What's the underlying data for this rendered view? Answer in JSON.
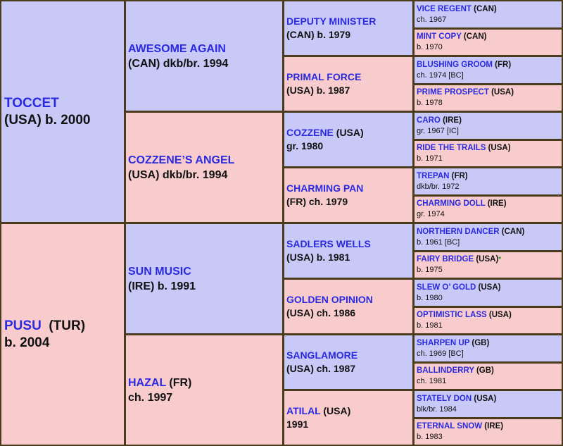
{
  "colors": {
    "male": "#c9c9f8",
    "female": "#f8cccc",
    "name": "#2a2ae0",
    "border": "#4a3b1c",
    "star": "#2a9a2a"
  },
  "gen1": [
    {
      "name": "TOCCET",
      "suffix": "",
      "line2": "(USA) b. 2000",
      "sex": "m"
    },
    {
      "name": "PUSU",
      "suffix": "  (TUR)",
      "line2": "b. 2004",
      "sex": "f"
    }
  ],
  "gen2": [
    {
      "name": "AWESOME AGAIN",
      "suffix": "",
      "line2": "(CAN) dkb/br. 1994",
      "sex": "m"
    },
    {
      "name": "COZZENE’S ANGEL",
      "suffix": "",
      "line2": "(USA) dkb/br. 1994",
      "sex": "f"
    },
    {
      "name": "SUN MUSIC",
      "suffix": "",
      "line2": "(IRE) b. 1991",
      "sex": "m"
    },
    {
      "name": "HAZAL",
      "suffix": " (FR)",
      "line2": "ch. 1997",
      "sex": "f"
    }
  ],
  "gen3": [
    {
      "name": "DEPUTY MINISTER",
      "suffix": "",
      "line2": "(CAN) b. 1979",
      "sex": "m"
    },
    {
      "name": "PRIMAL FORCE",
      "suffix": "",
      "line2": "(USA) b. 1987",
      "sex": "f"
    },
    {
      "name": "COZZENE",
      "suffix": " (USA)",
      "line2": "gr. 1980",
      "sex": "m"
    },
    {
      "name": "CHARMING PAN",
      "suffix": "",
      "line2": "(FR) ch. 1979",
      "sex": "f"
    },
    {
      "name": "SADLERS WELLS",
      "suffix": "",
      "line2": "(USA) b. 1981",
      "sex": "m"
    },
    {
      "name": "GOLDEN OPINION",
      "suffix": "",
      "line2": "(USA) ch. 1986",
      "sex": "f"
    },
    {
      "name": "SANGLAMORE",
      "suffix": "",
      "line2": "(USA) ch. 1987",
      "sex": "m"
    },
    {
      "name": "ATILAL",
      "suffix": " (USA)",
      "line2": "1991",
      "sex": "f"
    }
  ],
  "gen4": [
    {
      "name": "VICE REGENT",
      "suffix": " (CAN)",
      "line2": "ch. 1967",
      "sex": "m"
    },
    {
      "name": "MINT COPY",
      "suffix": " (CAN)",
      "line2": "b. 1970",
      "sex": "f"
    },
    {
      "name": "BLUSHING GROOM",
      "suffix": " (FR)",
      "line2": "ch. 1974 [BC]",
      "sex": "m"
    },
    {
      "name": "PRIME PROSPECT",
      "suffix": " (USA)",
      "line2": "b. 1978",
      "sex": "f"
    },
    {
      "name": "CARO",
      "suffix": " (IRE)",
      "line2": "gr. 1967 [IC]",
      "sex": "m"
    },
    {
      "name": "RIDE THE TRAILS",
      "suffix": " (USA)",
      "line2": "b. 1971",
      "sex": "f"
    },
    {
      "name": "TREPAN",
      "suffix": " (FR)",
      "line2": "dkb/br. 1972",
      "sex": "m"
    },
    {
      "name": "CHARMING DOLL",
      "suffix": " (IRE)",
      "line2": "gr. 1974",
      "sex": "f"
    },
    {
      "name": "NORTHERN DANCER",
      "suffix": " (CAN)",
      "line2": "b. 1961 [BC]",
      "sex": "m"
    },
    {
      "name": "FAIRY BRIDGE",
      "suffix": " (USA)",
      "mark": "*",
      "line2": "b. 1975",
      "sex": "f"
    },
    {
      "name": "SLEW O’ GOLD",
      "suffix": " (USA)",
      "line2": "b. 1980",
      "sex": "m"
    },
    {
      "name": "OPTIMISTIC LASS",
      "suffix": " (USA)",
      "line2": "b. 1981",
      "sex": "f"
    },
    {
      "name": "SHARPEN UP",
      "suffix": " (GB)",
      "line2": "ch. 1969 [BC]",
      "sex": "m"
    },
    {
      "name": "BALLINDERRY",
      "suffix": " (GB)",
      "line2": "ch. 1981",
      "sex": "f"
    },
    {
      "name": "STATELY DON",
      "suffix": " (USA)",
      "line2": "blk/br. 1984",
      "sex": "m"
    },
    {
      "name": "ETERNAL SNOW",
      "suffix": " (IRE)",
      "line2": "b. 1983",
      "sex": "f"
    }
  ]
}
